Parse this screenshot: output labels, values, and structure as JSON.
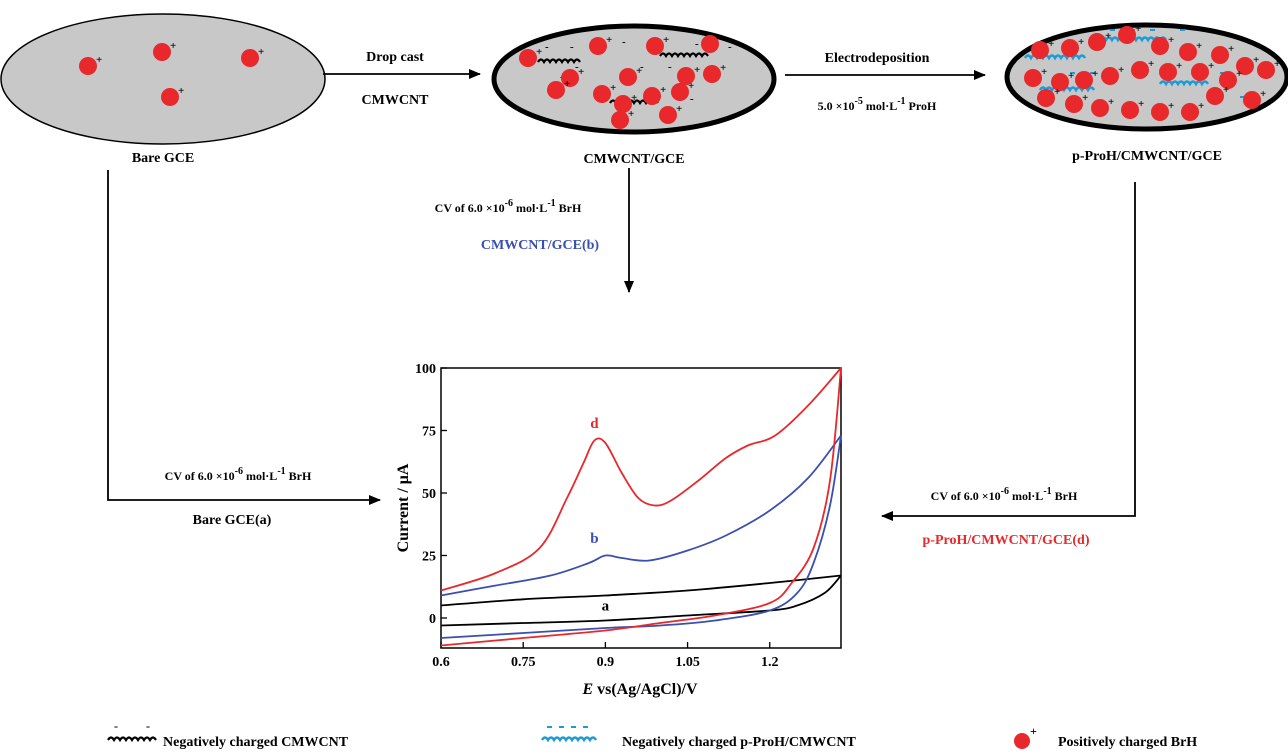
{
  "electrodes": {
    "bare": {
      "label": "Bare GCE"
    },
    "cmwcnt": {
      "label": "CMWCNT/GCE"
    },
    "pproh": {
      "label": "p-ProH/CMWCNT/GCE"
    }
  },
  "arrows": {
    "drop_cast": {
      "top": "Drop cast",
      "bottom": "CMWCNT"
    },
    "electrodeposition": {
      "top": "Electrodeposition",
      "bottom_pre": "5.0 ×10",
      "bottom_exp": "-5",
      "bottom_unit": "mol·L",
      "bottom_unit_exp": "-1",
      "bottom_post": "ProH"
    },
    "cv_b": {
      "cv_pre": "CV of 6.0 ×10",
      "cv_exp": "-6",
      "cv_unit": "mol·L",
      "cv_unit_exp": "-1",
      "cv_post": "BrH",
      "name": "CMWCNT/GCE(b)"
    },
    "cv_a": {
      "cv_pre": "CV of 6.0 ×10",
      "cv_exp": "-6",
      "cv_unit": "mol·L",
      "cv_unit_exp": "-1",
      "cv_post": "BrH",
      "name": "Bare GCE(a)"
    },
    "cv_d": {
      "cv_pre": "CV of 6.0 ×10",
      "cv_exp": "-6",
      "cv_unit": "mol·L",
      "cv_unit_exp": "-1",
      "cv_post": "BrH",
      "name": "p-ProH/CMWCNT/GCE(d)"
    }
  },
  "chart_data": {
    "type": "line",
    "xlabel_italic": "E",
    "xlabel_rest": " vs(Ag/AgCl)/V",
    "ylabel": "Current / μA",
    "xlim": [
      0.6,
      1.33
    ],
    "ylim": [
      -12,
      100
    ],
    "xticks": [
      "0.6",
      "0.75",
      "0.9",
      "1.05",
      "1.2"
    ],
    "xtick_values": [
      0.6,
      0.75,
      0.9,
      1.05,
      1.2
    ],
    "yticks": [
      "0",
      "25",
      "50",
      "75",
      "100"
    ],
    "ytick_values": [
      0,
      25,
      50,
      75,
      100
    ],
    "series": [
      {
        "name": "a",
        "color": "#000000",
        "forward": [
          [
            0.6,
            5
          ],
          [
            0.75,
            7.5
          ],
          [
            0.9,
            9
          ],
          [
            1.05,
            11
          ],
          [
            1.2,
            14
          ],
          [
            1.33,
            17
          ]
        ],
        "reverse": [
          [
            1.33,
            17
          ],
          [
            1.3,
            10
          ],
          [
            1.25,
            5
          ],
          [
            1.2,
            3
          ],
          [
            1.05,
            1
          ],
          [
            0.9,
            -1
          ],
          [
            0.75,
            -2
          ],
          [
            0.6,
            -3
          ]
        ]
      },
      {
        "name": "b",
        "color": "#3a4fb0",
        "forward": [
          [
            0.6,
            9
          ],
          [
            0.7,
            13
          ],
          [
            0.8,
            17
          ],
          [
            0.87,
            22
          ],
          [
            0.9,
            25
          ],
          [
            0.93,
            24
          ],
          [
            0.98,
            23
          ],
          [
            1.05,
            27
          ],
          [
            1.12,
            33
          ],
          [
            1.2,
            43
          ],
          [
            1.27,
            56
          ],
          [
            1.33,
            73
          ]
        ],
        "reverse": [
          [
            1.33,
            73
          ],
          [
            1.31,
            45
          ],
          [
            1.28,
            22
          ],
          [
            1.25,
            10
          ],
          [
            1.2,
            3
          ],
          [
            1.1,
            -1
          ],
          [
            1.0,
            -3
          ],
          [
            0.9,
            -4
          ],
          [
            0.75,
            -6
          ],
          [
            0.6,
            -8
          ]
        ]
      },
      {
        "name": "d",
        "color": "#e8282b",
        "forward": [
          [
            0.6,
            11
          ],
          [
            0.7,
            18
          ],
          [
            0.78,
            28
          ],
          [
            0.83,
            48
          ],
          [
            0.86,
            62
          ],
          [
            0.88,
            71
          ],
          [
            0.9,
            70
          ],
          [
            0.93,
            58
          ],
          [
            0.96,
            48
          ],
          [
            0.99,
            45
          ],
          [
            1.02,
            47
          ],
          [
            1.07,
            55
          ],
          [
            1.12,
            64
          ],
          [
            1.16,
            69
          ],
          [
            1.21,
            73
          ],
          [
            1.27,
            85
          ],
          [
            1.33,
            100
          ]
        ],
        "reverse": [
          [
            1.33,
            100
          ],
          [
            1.31,
            55
          ],
          [
            1.28,
            28
          ],
          [
            1.24,
            14
          ],
          [
            1.2,
            6
          ],
          [
            1.1,
            1
          ],
          [
            1.0,
            -2
          ],
          [
            0.9,
            -5
          ],
          [
            0.75,
            -8
          ],
          [
            0.6,
            -11
          ]
        ]
      }
    ],
    "labels": [
      {
        "text": "d",
        "color": "#e8282b",
        "x": 0.88,
        "y": 76
      },
      {
        "text": "b",
        "color": "#3a4fb0",
        "x": 0.88,
        "y": 30
      },
      {
        "text": "a",
        "color": "#000000",
        "x": 0.9,
        "y": 3
      }
    ]
  },
  "legend": [
    {
      "text": "Negatively charged CMWCNT"
    },
    {
      "text": "Negatively charged p-ProH/CMWCNT"
    },
    {
      "text": "Positively charged BrH"
    }
  ],
  "colors": {
    "electrode_fill": "#c8c8c8",
    "brh": "#e8282b",
    "cmwcnt": "#000000",
    "pproh": "#1e9bd7"
  }
}
